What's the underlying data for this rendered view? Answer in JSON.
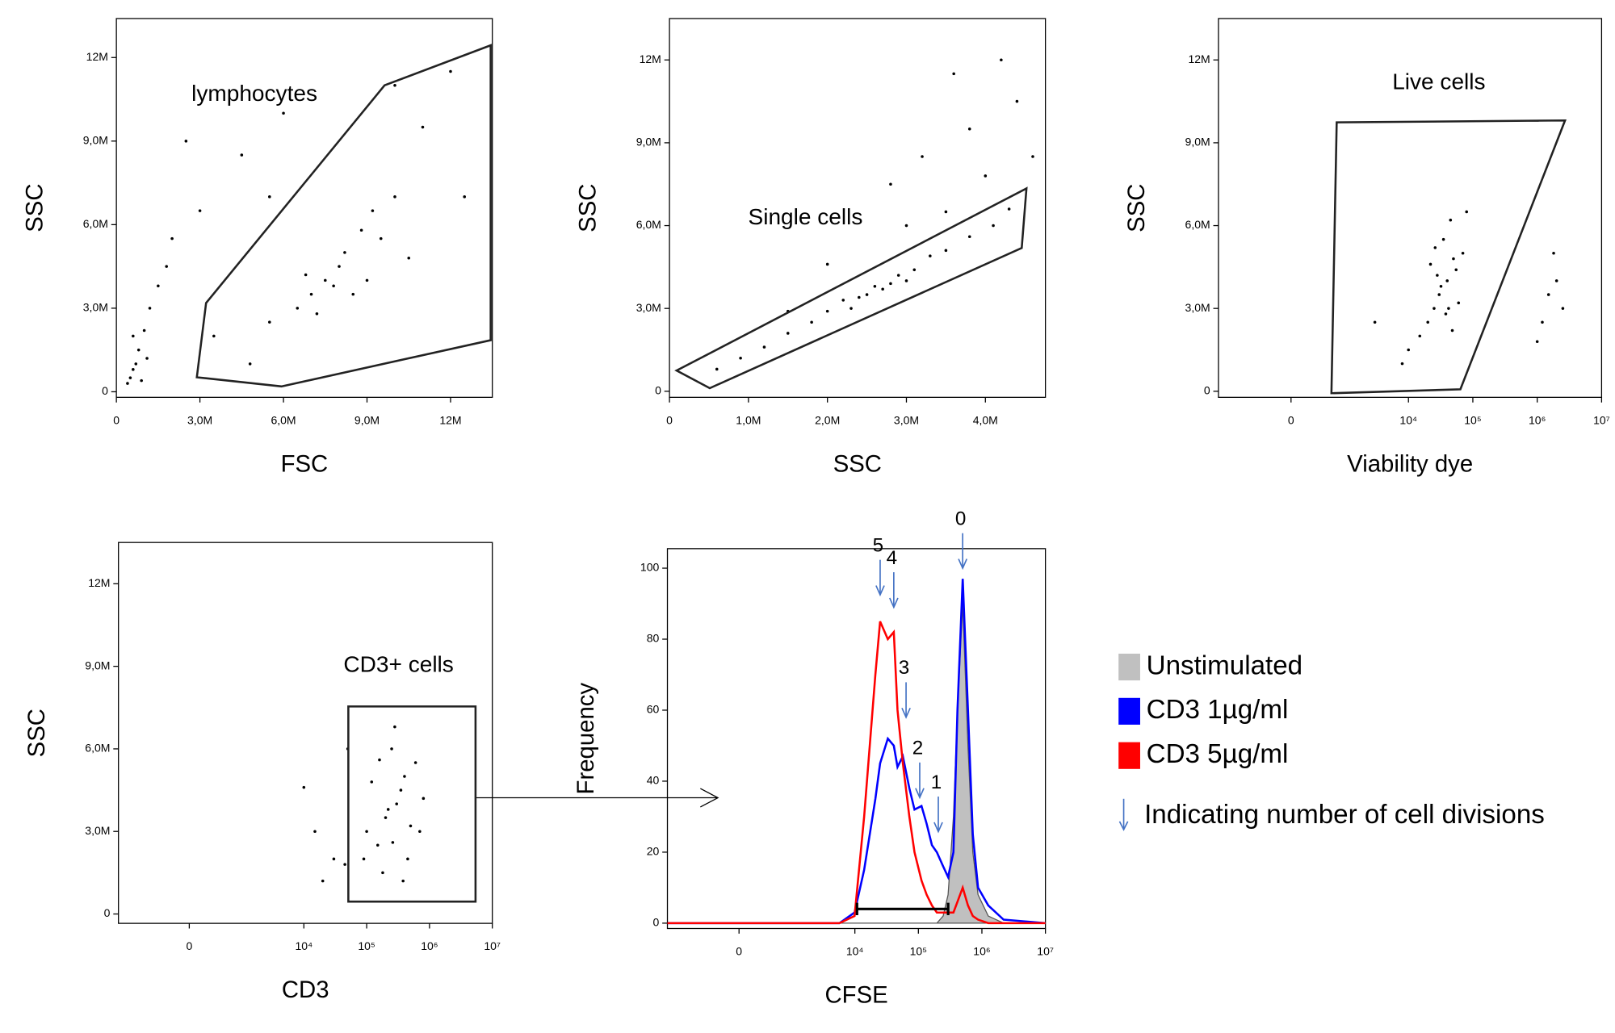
{
  "chart_data": [
    {
      "type": "scatter",
      "xlabel": "FSC",
      "ylabel": "SSC",
      "xlim": [
        0,
        13.5
      ],
      "ylim": [
        -0.2,
        13.4
      ],
      "xticks": [
        0,
        {
          "value": 3,
          "label": "3,0M"
        },
        {
          "value": 6,
          "label": "6,0M"
        },
        {
          "value": 9,
          "label": "9,0M"
        },
        {
          "value": 12,
          "label": "12M"
        }
      ],
      "yticks": [
        0,
        {
          "value": 3,
          "label": "3,0M"
        },
        {
          "value": 6,
          "label": "6,0M"
        },
        {
          "value": 9,
          "label": "9,0M"
        },
        {
          "value": 12,
          "label": "12M"
        }
      ],
      "x": [
        0.4,
        0.6,
        0.8,
        0.5,
        1.0,
        1.2,
        0.7,
        1.5,
        0.9,
        1.8,
        0.6,
        1.1,
        7.5,
        8.2,
        8.8,
        7.0,
        9.2,
        6.5,
        8.0,
        7.8,
        9.5,
        6.8,
        8.5,
        10.0,
        5.5,
        10.5,
        7.2,
        9.0,
        3,
        4.5,
        2.5,
        5.5,
        11,
        12,
        3.5,
        4.8,
        10,
        2,
        6,
        12.5
      ],
      "y": [
        0.3,
        0.8,
        1.5,
        0.5,
        2.2,
        3.0,
        1.0,
        3.8,
        0.4,
        4.5,
        2.0,
        1.2,
        4.0,
        5.0,
        5.8,
        3.5,
        6.5,
        3.0,
        4.5,
        3.8,
        5.5,
        4.2,
        3.5,
        7.0,
        2.5,
        4.8,
        2.8,
        4.0,
        6.5,
        8.5,
        9.0,
        7.0,
        9.5,
        11.5,
        2.0,
        1.0,
        11,
        5.5,
        10,
        7
      ],
      "gate": {
        "label": "lymphocytes",
        "x": [
          2.89,
          3.22,
          9.63,
          13.44,
          13.44,
          5.93
        ],
        "y": [
          0.52,
          3.19,
          11.0,
          12.44,
          1.85,
          0.19
        ]
      }
    },
    {
      "type": "scatter",
      "xlabel": "SSC",
      "ylabel": "SSC",
      "xlim": [
        0,
        4.76
      ],
      "ylim": [
        -0.22,
        13.5
      ],
      "xticks": [
        0,
        {
          "value": 1,
          "label": "1,0M"
        },
        {
          "value": 2,
          "label": "2,0M"
        },
        {
          "value": 3,
          "label": "3,0M"
        },
        {
          "value": 4,
          "label": "4,0M"
        }
      ],
      "yticks": [
        0,
        {
          "value": 3,
          "label": "3,0M"
        },
        {
          "value": 6,
          "label": "6,0M"
        },
        {
          "value": 9,
          "label": "9,0M"
        },
        {
          "value": 12,
          "label": "12M"
        }
      ],
      "x": [
        0.6,
        0.9,
        1.2,
        1.5,
        1.8,
        2.0,
        2.2,
        2.4,
        2.6,
        2.7,
        2.9,
        3.1,
        3.3,
        3.5,
        3.8,
        4.1,
        4.3,
        2.3,
        2.5,
        2.8,
        3.0,
        2.8,
        3.2,
        3.5,
        3.8,
        4.0,
        4.4,
        3.0,
        2.0,
        4.6,
        3.6,
        4.2,
        1.5
      ],
      "y": [
        0.8,
        1.2,
        1.6,
        2.1,
        2.5,
        2.9,
        3.3,
        3.4,
        3.8,
        3.7,
        4.2,
        4.4,
        4.9,
        5.1,
        5.6,
        6.0,
        6.6,
        3.0,
        3.5,
        3.9,
        4.0,
        7.5,
        8.5,
        6.5,
        9.5,
        7.8,
        10.5,
        6.0,
        4.6,
        8.5,
        11.5,
        12.0,
        2.9
      ],
      "gate": {
        "label": "Single cells",
        "x": [
          0.09,
          0.51,
          4.46,
          4.52
        ],
        "y": [
          0.75,
          0.11,
          5.19,
          7.35
        ]
      }
    },
    {
      "type": "scatter",
      "xlabel": "Viability dye",
      "ylabel": "SSC",
      "xscale": "asinh",
      "xlim": [
        -2000,
        10000000
      ],
      "ylim": [
        -0.22,
        13.5
      ],
      "xticks": [
        0,
        {
          "value": 10000,
          "label": "10⁴"
        },
        {
          "value": 100000,
          "label": "10⁵"
        },
        {
          "value": 1000000,
          "label": "10⁶"
        },
        {
          "value": 10000000,
          "label": "10⁷"
        }
      ],
      "yticks": [
        0,
        {
          "value": 3,
          "label": "3,0M"
        },
        {
          "value": 6,
          "label": "6,0M"
        },
        {
          "value": 9,
          "label": "9,0M"
        },
        {
          "value": 12,
          "label": "12M"
        }
      ],
      "x": [
        30000,
        40000,
        25000,
        50000,
        35000,
        20000,
        60000,
        45000,
        28000,
        38000,
        15000,
        70000,
        32000,
        55000,
        22000,
        42000,
        10000,
        80000,
        26000,
        48000,
        1500000,
        2000000,
        1200000,
        2500000,
        1800000,
        1000000,
        3000,
        8000
      ],
      "y": [
        3.5,
        4.0,
        3.0,
        4.8,
        5.5,
        2.5,
        3.2,
        6.2,
        4.2,
        2.8,
        2.0,
        5.0,
        3.8,
        4.4,
        4.6,
        3.0,
        1.5,
        6.5,
        5.2,
        2.2,
        3.5,
        4.0,
        2.5,
        3.0,
        5.0,
        1.8,
        2.5,
        1.0
      ],
      "gate": {
        "label": "Live cells",
        "x": [
          600,
          740,
          2700000,
          64000
        ],
        "y": [
          -0.07,
          9.74,
          9.81,
          0.07
        ]
      }
    },
    {
      "type": "scatter",
      "xlabel": "CD3",
      "ylabel": "SSC",
      "xscale": "asinh",
      "xlim": [
        -2000,
        10000000
      ],
      "ylim": [
        -0.34,
        13.5
      ],
      "xticks": [
        0,
        {
          "value": 10000,
          "label": "10⁴"
        },
        {
          "value": 100000,
          "label": "10⁵"
        },
        {
          "value": 1000000,
          "label": "10⁶"
        },
        {
          "value": 10000000,
          "label": "10⁷"
        }
      ],
      "yticks": [
        0,
        {
          "value": 3,
          "label": "3,0M"
        },
        {
          "value": 6,
          "label": "6,0M"
        },
        {
          "value": 9,
          "label": "9,0M"
        },
        {
          "value": 12,
          "label": "12M"
        }
      ],
      "x": [
        200000,
        300000,
        150000,
        400000,
        250000,
        100000,
        500000,
        350000,
        180000,
        600000,
        120000,
        450000,
        220000,
        280000,
        800000,
        90000,
        160000,
        380000,
        700000,
        260000,
        30000,
        15000,
        20000,
        45000,
        10000,
        50000
      ],
      "y": [
        3.5,
        4.0,
        2.5,
        5.0,
        6.0,
        3.0,
        3.2,
        4.5,
        1.5,
        5.5,
        4.8,
        2.0,
        3.8,
        6.8,
        4.2,
        2.0,
        5.6,
        1.2,
        3.0,
        2.6,
        2.0,
        3.0,
        1.2,
        1.8,
        4.6,
        6.0
      ],
      "gate": {
        "label": "CD3+ cells",
        "x": [
          51000,
          5400000,
          5400000,
          51000
        ],
        "y": [
          7.54,
          7.54,
          0.45,
          0.45
        ]
      }
    },
    {
      "type": "line",
      "xlabel": "CFSE",
      "ylabel": "Frequency",
      "xscale": "asinh",
      "xlim": [
        -2000,
        10000000
      ],
      "ylim": [
        -1.5,
        105.5
      ],
      "xticks": [
        0,
        {
          "value": 10000,
          "label": "10⁴"
        },
        {
          "value": 100000,
          "label": "10⁵"
        },
        {
          "value": 1000000,
          "label": "10⁶"
        },
        {
          "value": 10000000,
          "label": "10⁷"
        }
      ],
      "yticks": [
        0,
        20,
        40,
        60,
        80,
        100
      ],
      "x": [
        -2000,
        5700,
        9900,
        14000,
        21000,
        25000,
        33000,
        41000,
        47000,
        57000,
        72000,
        87000,
        112000,
        135000,
        163000,
        195000,
        245000,
        294000,
        356000,
        413000,
        498000,
        603000,
        720000,
        870000,
        1260000,
        2200000,
        10000000
      ],
      "series": [
        {
          "name": "Unstimulated",
          "color": "#c0c0c0",
          "fill": true,
          "values": [
            0,
            0,
            0,
            0,
            0,
            0,
            0,
            0,
            0,
            0,
            0,
            0,
            0,
            0,
            0,
            0,
            2,
            8,
            30,
            60,
            90,
            50,
            20,
            8,
            2,
            0,
            0
          ]
        },
        {
          "name": "CD3 1µg/ml",
          "color": "#0000ff",
          "values": [
            0,
            0,
            3,
            15,
            35,
            45,
            52,
            50,
            44,
            47,
            38,
            32,
            33,
            28,
            22,
            20,
            16,
            13,
            20,
            60,
            97,
            60,
            25,
            10,
            5,
            1,
            0
          ]
        },
        {
          "name": "CD3 5µg/ml",
          "color": "#ff0000",
          "values": [
            0,
            0,
            2,
            30,
            70,
            85,
            80,
            82,
            60,
            45,
            30,
            20,
            12,
            8,
            5,
            3,
            3,
            3,
            3,
            6,
            10,
            5,
            2,
            1,
            0,
            0,
            0
          ]
        }
      ],
      "gate": {
        "x": [
          10800,
          294000
        ],
        "y": [
          4,
          4
        ]
      },
      "divisions": [
        {
          "label": "0",
          "x": 498000,
          "y": 100
        },
        {
          "label": "5",
          "x": 25000,
          "y": 92.5
        },
        {
          "label": "4",
          "x": 41000,
          "y": 89
        },
        {
          "label": "3",
          "x": 64000,
          "y": 58
        },
        {
          "label": "2",
          "x": 105000,
          "y": 35.4
        },
        {
          "label": "1",
          "x": 206000,
          "y": 25.8
        }
      ],
      "division_note": "Indicating number of cell divisions",
      "division_color": "#4472c4"
    }
  ]
}
